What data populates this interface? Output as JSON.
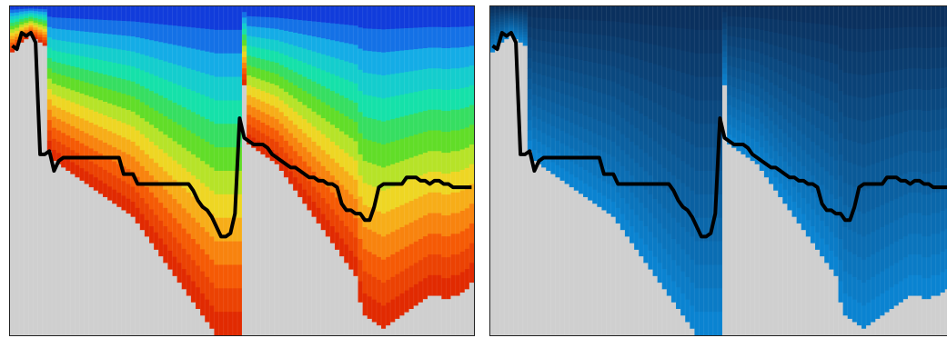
{
  "chart_data": [
    {
      "type": "heatmap",
      "title": "",
      "xlabel": "",
      "ylabel": "",
      "grid": false,
      "legend": "none",
      "n_columns": 100,
      "y_range": [
        0,
        1
      ],
      "colormap": "rainbow",
      "fill_color": "#cfcfcf",
      "line_color": "#000000",
      "boundary_profile": [
        0.86,
        0.87,
        0.89,
        0.9,
        0.91,
        0.9,
        0.89,
        0.88,
        0.56,
        0.53,
        0.52,
        0.51,
        0.5,
        0.49,
        0.48,
        0.47,
        0.46,
        0.45,
        0.44,
        0.43,
        0.42,
        0.41,
        0.4,
        0.39,
        0.38,
        0.37,
        0.36,
        0.34,
        0.32,
        0.3,
        0.28,
        0.26,
        0.24,
        0.22,
        0.2,
        0.18,
        0.16,
        0.14,
        0.12,
        0.1,
        0.08,
        0.06,
        0.04,
        0.02,
        0.0,
        0.0,
        0.0,
        0.0,
        0.0,
        0.0,
        0.76,
        0.58,
        0.57,
        0.56,
        0.55,
        0.54,
        0.53,
        0.52,
        0.5,
        0.48,
        0.46,
        0.44,
        0.42,
        0.4,
        0.38,
        0.36,
        0.34,
        0.32,
        0.3,
        0.28,
        0.26,
        0.24,
        0.22,
        0.2,
        0.18,
        0.1,
        0.06,
        0.05,
        0.04,
        0.03,
        0.02,
        0.03,
        0.04,
        0.05,
        0.06,
        0.07,
        0.08,
        0.09,
        0.1,
        0.11,
        0.12,
        0.12,
        0.12,
        0.11,
        0.11,
        0.12,
        0.12,
        0.13,
        0.14,
        0.16
      ],
      "black_line": [
        0.88,
        0.87,
        0.92,
        0.91,
        0.92,
        0.89,
        0.55,
        0.55,
        0.56,
        0.5,
        0.53,
        0.54,
        0.54,
        0.54,
        0.54,
        0.54,
        0.54,
        0.54,
        0.54,
        0.54,
        0.54,
        0.54,
        0.54,
        0.54,
        0.49,
        0.49,
        0.49,
        0.46,
        0.46,
        0.46,
        0.46,
        0.46,
        0.46,
        0.46,
        0.46,
        0.46,
        0.46,
        0.46,
        0.46,
        0.44,
        0.41,
        0.39,
        0.38,
        0.36,
        0.33,
        0.3,
        0.3,
        0.31,
        0.37,
        0.66,
        0.6,
        0.59,
        0.58,
        0.58,
        0.58,
        0.57,
        0.55,
        0.54,
        0.53,
        0.52,
        0.51,
        0.51,
        0.5,
        0.49,
        0.48,
        0.48,
        0.47,
        0.47,
        0.46,
        0.46,
        0.45,
        0.4,
        0.38,
        0.38,
        0.37,
        0.37,
        0.35,
        0.35,
        0.39,
        0.45,
        0.46,
        0.46,
        0.46,
        0.46,
        0.46,
        0.48,
        0.48,
        0.48,
        0.47,
        0.47,
        0.46,
        0.47,
        0.47,
        0.46,
        0.46,
        0.45,
        0.45,
        0.45,
        0.45,
        0.45
      ]
    },
    {
      "type": "heatmap",
      "title": "",
      "xlabel": "",
      "ylabel": "",
      "grid": false,
      "legend": "none",
      "n_columns": 100,
      "y_range": [
        0,
        1
      ],
      "colormap": "blue",
      "fill_color": "#cfcfcf",
      "line_color": "#000000",
      "boundary_profile": [
        0.86,
        0.87,
        0.89,
        0.9,
        0.91,
        0.9,
        0.89,
        0.88,
        0.56,
        0.53,
        0.52,
        0.51,
        0.5,
        0.49,
        0.48,
        0.47,
        0.46,
        0.45,
        0.44,
        0.43,
        0.42,
        0.41,
        0.4,
        0.39,
        0.38,
        0.37,
        0.36,
        0.34,
        0.32,
        0.3,
        0.28,
        0.26,
        0.24,
        0.22,
        0.2,
        0.18,
        0.16,
        0.14,
        0.12,
        0.1,
        0.08,
        0.06,
        0.04,
        0.02,
        0.0,
        0.0,
        0.0,
        0.0,
        0.0,
        0.0,
        0.76,
        0.58,
        0.57,
        0.56,
        0.55,
        0.54,
        0.53,
        0.52,
        0.5,
        0.48,
        0.46,
        0.44,
        0.42,
        0.4,
        0.38,
        0.36,
        0.34,
        0.32,
        0.3,
        0.28,
        0.26,
        0.24,
        0.22,
        0.2,
        0.18,
        0.1,
        0.06,
        0.05,
        0.04,
        0.03,
        0.02,
        0.03,
        0.04,
        0.05,
        0.06,
        0.07,
        0.08,
        0.09,
        0.1,
        0.11,
        0.12,
        0.12,
        0.12,
        0.11,
        0.11,
        0.12,
        0.12,
        0.13,
        0.14,
        0.16
      ],
      "black_line": [
        0.88,
        0.87,
        0.92,
        0.91,
        0.92,
        0.89,
        0.55,
        0.55,
        0.56,
        0.5,
        0.53,
        0.54,
        0.54,
        0.54,
        0.54,
        0.54,
        0.54,
        0.54,
        0.54,
        0.54,
        0.54,
        0.54,
        0.54,
        0.54,
        0.49,
        0.49,
        0.49,
        0.46,
        0.46,
        0.46,
        0.46,
        0.46,
        0.46,
        0.46,
        0.46,
        0.46,
        0.46,
        0.46,
        0.46,
        0.44,
        0.41,
        0.39,
        0.38,
        0.36,
        0.33,
        0.3,
        0.3,
        0.31,
        0.37,
        0.66,
        0.6,
        0.59,
        0.58,
        0.58,
        0.58,
        0.57,
        0.55,
        0.54,
        0.53,
        0.52,
        0.51,
        0.51,
        0.5,
        0.49,
        0.48,
        0.48,
        0.47,
        0.47,
        0.46,
        0.46,
        0.45,
        0.4,
        0.38,
        0.38,
        0.37,
        0.37,
        0.35,
        0.35,
        0.39,
        0.45,
        0.46,
        0.46,
        0.46,
        0.46,
        0.46,
        0.48,
        0.48,
        0.48,
        0.47,
        0.47,
        0.46,
        0.47,
        0.47,
        0.46,
        0.46,
        0.45,
        0.45,
        0.45,
        0.45,
        0.45
      ]
    }
  ]
}
